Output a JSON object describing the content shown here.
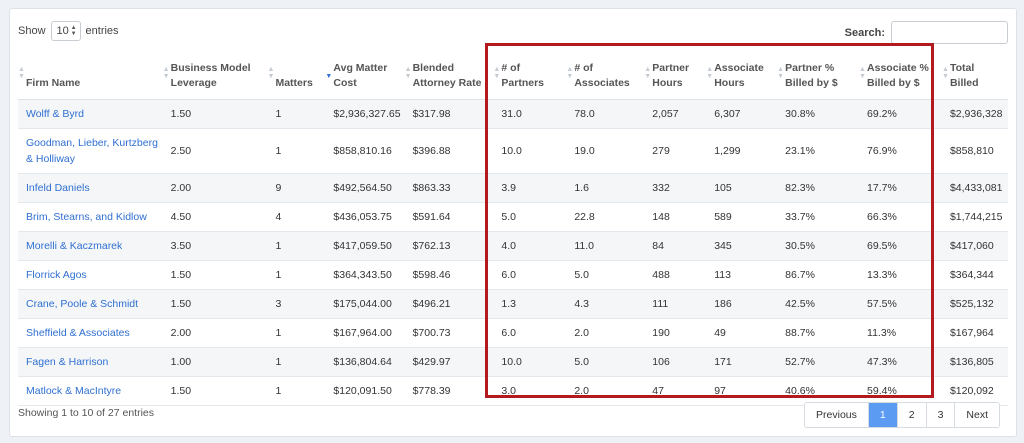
{
  "length_control": {
    "prefix": "Show",
    "value": "10",
    "suffix": "entries"
  },
  "search": {
    "label": "Search:",
    "placeholder": ""
  },
  "columns": [
    {
      "line1": "Firm Name",
      "line2": ""
    },
    {
      "line1": "Business Model",
      "line2": "Leverage"
    },
    {
      "line1": "Matters",
      "line2": ""
    },
    {
      "line1": "Avg Matter",
      "line2": "Cost"
    },
    {
      "line1": "Blended",
      "line2": "Attorney Rate"
    },
    {
      "line1": "# of",
      "line2": "Partners"
    },
    {
      "line1": "# of",
      "line2": "Associates"
    },
    {
      "line1": "Partner",
      "line2": "Hours"
    },
    {
      "line1": "Associate",
      "line2": "Hours"
    },
    {
      "line1": "Partner %",
      "line2": "Billed by $"
    },
    {
      "line1": "Associate %",
      "line2": "Billed by $"
    },
    {
      "line1": "Total",
      "line2": "Billed"
    }
  ],
  "rows": [
    [
      "Wolff & Byrd",
      "1.50",
      "1",
      "$2,936,327.65",
      "$317.98",
      "31.0",
      "78.0",
      "2,057",
      "6,307",
      "30.8%",
      "69.2%",
      "$2,936,328"
    ],
    [
      "Goodman, Lieber, Kurtzberg & Holliway",
      "2.50",
      "1",
      "$858,810.16",
      "$396.88",
      "10.0",
      "19.0",
      "279",
      "1,299",
      "23.1%",
      "76.9%",
      "$858,810"
    ],
    [
      "Infeld Daniels",
      "2.00",
      "9",
      "$492,564.50",
      "$863.33",
      "3.9",
      "1.6",
      "332",
      "105",
      "82.3%",
      "17.7%",
      "$4,433,081"
    ],
    [
      "Brim, Stearns, and Kidlow",
      "4.50",
      "4",
      "$436,053.75",
      "$591.64",
      "5.0",
      "22.8",
      "148",
      "589",
      "33.7%",
      "66.3%",
      "$1,744,215"
    ],
    [
      "Morelli & Kaczmarek",
      "3.50",
      "1",
      "$417,059.50",
      "$762.13",
      "4.0",
      "11.0",
      "84",
      "345",
      "30.5%",
      "69.5%",
      "$417,060"
    ],
    [
      "Florrick Agos",
      "1.50",
      "1",
      "$364,343.50",
      "$598.46",
      "6.0",
      "5.0",
      "488",
      "113",
      "86.7%",
      "13.3%",
      "$364,344"
    ],
    [
      "Crane, Poole & Schmidt",
      "1.50",
      "3",
      "$175,044.00",
      "$496.21",
      "1.3",
      "4.3",
      "111",
      "186",
      "42.5%",
      "57.5%",
      "$525,132"
    ],
    [
      "Sheffield & Associates",
      "2.00",
      "1",
      "$167,964.00",
      "$700.73",
      "6.0",
      "2.0",
      "190",
      "49",
      "88.7%",
      "11.3%",
      "$167,964"
    ],
    [
      "Fagen & Harrison",
      "1.00",
      "1",
      "$136,804.64",
      "$429.97",
      "10.0",
      "5.0",
      "106",
      "171",
      "52.7%",
      "47.3%",
      "$136,805"
    ],
    [
      "Matlock & MacIntyre",
      "1.50",
      "1",
      "$120,091.50",
      "$778.39",
      "3.0",
      "2.0",
      "47",
      "97",
      "40.6%",
      "59.4%",
      "$120,092"
    ]
  ],
  "info": "Showing 1 to 10 of 27 entries",
  "pagination": {
    "previous": "Previous",
    "pages": [
      "1",
      "2",
      "3"
    ],
    "next": "Next",
    "active": "1"
  },
  "colors": {
    "link": "#2f6fd1",
    "highlight_border": "#b21a1f",
    "active_page": "#5b9cf2",
    "sort_active": "#3a6fd8"
  },
  "icons": {
    "sort": "sort-icon",
    "sort_active": "sort-desc-icon",
    "select_caret": "select-caret-icon"
  }
}
